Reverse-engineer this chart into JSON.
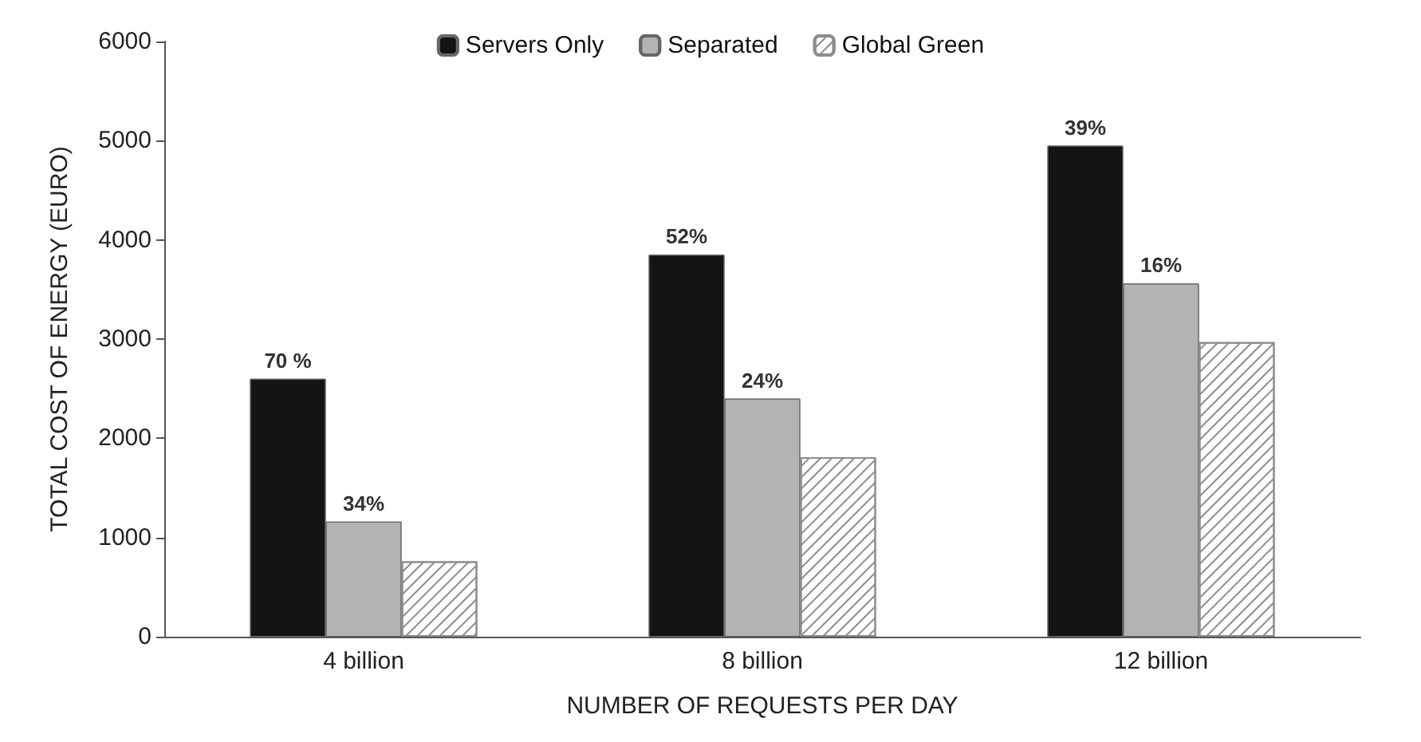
{
  "chart_data": {
    "type": "bar",
    "xlabel": "NUMBER OF REQUESTS PER DAY",
    "ylabel": "TOTAL COST OF ENERGY (EURO)",
    "categories": [
      "4 billion",
      "8 billion",
      "12 billion"
    ],
    "series": [
      {
        "name": "Servers Only",
        "color": "#141414",
        "values": [
          2600,
          3850,
          4950
        ]
      },
      {
        "name": "Separated",
        "color": "#b3b3b3",
        "values": [
          1160,
          2400,
          3560
        ]
      },
      {
        "name": "Global Green",
        "color": "#8c8c8c",
        "values": [
          760,
          1810,
          2970
        ]
      }
    ],
    "annotations": [
      "70 %",
      "34%",
      "52%",
      "24%",
      "39%",
      "16%"
    ],
    "ylim": [
      0,
      6000
    ],
    "yticks": [
      0,
      1000,
      2000,
      3000,
      4000,
      5000,
      6000
    ],
    "grid": false,
    "legend": "top"
  }
}
